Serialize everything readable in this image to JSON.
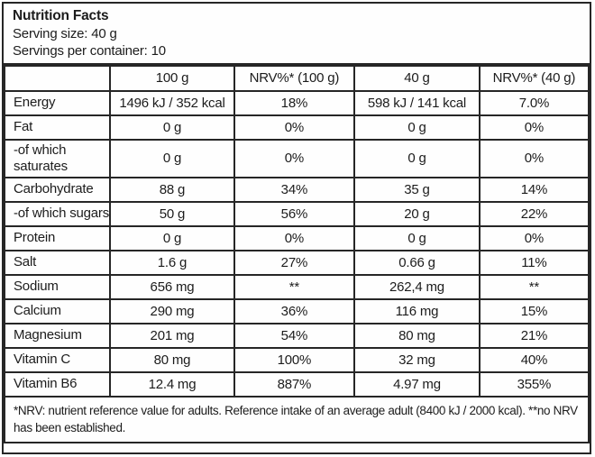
{
  "header": {
    "title": "Nutrition Facts",
    "serving_size": "Serving size: 40 g",
    "servings_per_container": "Servings per container: 10"
  },
  "table": {
    "columns": [
      "",
      "100 g",
      "NRV%* (100 g)",
      "40 g",
      "NRV%* (40 g)"
    ],
    "rows": [
      {
        "label": "Energy",
        "per_100g": "1496 kJ / 352 kcal",
        "nrv_100g": "18%",
        "per_40g": "598 kJ / 141 kcal",
        "nrv_40g": "7.0%"
      },
      {
        "label": "Fat",
        "per_100g": "0 g",
        "nrv_100g": "0%",
        "per_40g": "0 g",
        "nrv_40g": "0%"
      },
      {
        "label": "-of which saturates",
        "per_100g": "0 g",
        "nrv_100g": "0%",
        "per_40g": "0 g",
        "nrv_40g": "0%"
      },
      {
        "label": "Carbohydrate",
        "per_100g": "88 g",
        "nrv_100g": "34%",
        "per_40g": "35 g",
        "nrv_40g": "14%"
      },
      {
        "label": "-of which sugars",
        "per_100g": "50 g",
        "nrv_100g": "56%",
        "per_40g": "20 g",
        "nrv_40g": "22%"
      },
      {
        "label": "Protein",
        "per_100g": "0 g",
        "nrv_100g": "0%",
        "per_40g": "0 g",
        "nrv_40g": "0%"
      },
      {
        "label": "Salt",
        "per_100g": "1.6 g",
        "nrv_100g": "27%",
        "per_40g": "0.66 g",
        "nrv_40g": "11%"
      },
      {
        "label": "Sodium",
        "per_100g": "656 mg",
        "nrv_100g": "**",
        "per_40g": "262,4 mg",
        "nrv_40g": "**"
      },
      {
        "label": "Calcium",
        "per_100g": "290 mg",
        "nrv_100g": "36%",
        "per_40g": "116 mg",
        "nrv_40g": "15%"
      },
      {
        "label": "Magnesium",
        "per_100g": "201 mg",
        "nrv_100g": "54%",
        "per_40g": "80 mg",
        "nrv_40g": "21%"
      },
      {
        "label": "Vitamin C",
        "per_100g": "80 mg",
        "nrv_100g": "100%",
        "per_40g": "32 mg",
        "nrv_40g": "40%"
      },
      {
        "label": "Vitamin B6",
        "per_100g": "12.4 mg",
        "nrv_100g": "887%",
        "per_40g": "4.97 mg",
        "nrv_40g": "355%"
      }
    ],
    "footnote": "*NRV: nutrient reference value for adults. Reference intake of an average adult (8400 kJ / 2000 kcal). **no NRV has been established."
  },
  "colors": {
    "border": "#262626",
    "text": "#1c1c1c",
    "background": "#ffffff"
  }
}
